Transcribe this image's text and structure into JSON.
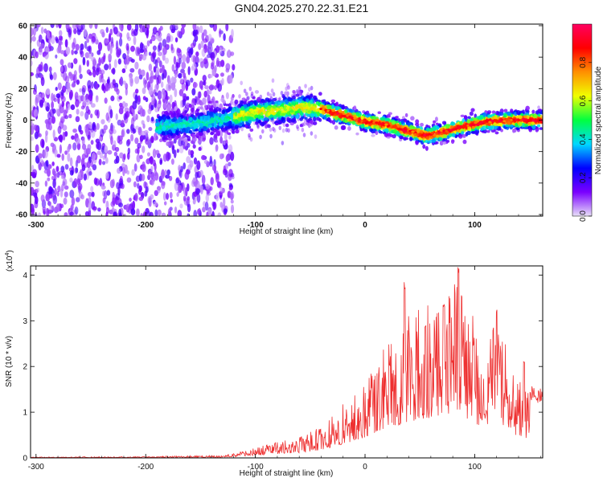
{
  "title": "GN04.2025.270.22.31.E21",
  "chart_data": [
    {
      "type": "heatmap",
      "xlabel": "Height of straight line (km)",
      "ylabel": "Frequency (Hz)",
      "xlim": [
        -305,
        162
      ],
      "ylim": [
        -61,
        61
      ],
      "xticks": [
        -300,
        -200,
        -100,
        0,
        100
      ],
      "yticks": [
        60,
        40,
        20,
        0,
        -20,
        -40,
        -60
      ],
      "colorbar": {
        "label": "Normalized spectral amplitude",
        "ticks": [
          "0.0",
          "0.2",
          "0.4",
          "0.6",
          "0.8"
        ],
        "colors": [
          "#e8e0f8",
          "#7a00ff",
          "#0000ff",
          "#00d8ff",
          "#00ff40",
          "#f0ff00",
          "#ff9000",
          "#ff0000",
          "#ff0060"
        ]
      },
      "ridge": {
        "x": [
          -300,
          -250,
          -200,
          -150,
          -120,
          -100,
          -80,
          -60,
          -40,
          -20,
          0,
          20,
          40,
          55,
          70,
          90,
          110,
          130,
          160
        ],
        "y": [
          -5,
          -5,
          -5,
          -2,
          2,
          5,
          6,
          8,
          7,
          3,
          -1,
          -3,
          -7,
          -10,
          -8,
          -4,
          -1,
          0,
          0
        ]
      }
    },
    {
      "type": "line",
      "xlabel": "Height of straight line (km)",
      "ylabel": "SNR (10 * v/v)",
      "multiplier": "(x10",
      "multiplier_exp": "4",
      "xlim": [
        -305,
        162
      ],
      "ylim": [
        0,
        4.2
      ],
      "xticks": [
        -300,
        -200,
        -100,
        0,
        100
      ],
      "yticks": [
        0,
        1,
        2,
        3,
        4
      ],
      "line_color": "#ee3030",
      "envelope": {
        "x": [
          -305,
          -200,
          -130,
          -115,
          -100,
          -80,
          -60,
          -40,
          -20,
          0,
          20,
          35,
          50,
          70,
          85,
          90,
          100,
          110,
          120,
          140,
          162
        ],
        "y": [
          0.02,
          0.03,
          0.06,
          0.12,
          0.22,
          0.35,
          0.45,
          0.7,
          1.2,
          1.8,
          2.6,
          3.0,
          3.4,
          3.6,
          4.15,
          3.6,
          3.0,
          2.4,
          3.2,
          1.8,
          1.6
        ]
      },
      "peaks": [
        {
          "x": 36,
          "y": 3.85
        },
        {
          "x": 55,
          "y": 2.9
        },
        {
          "x": 72,
          "y": 3.4
        },
        {
          "x": 85,
          "y": 4.2
        },
        {
          "x": 88,
          "y": 3.6
        },
        {
          "x": 99,
          "y": 2.5
        },
        {
          "x": 120,
          "y": 3.25
        },
        {
          "x": 145,
          "y": 2.15
        }
      ]
    }
  ]
}
